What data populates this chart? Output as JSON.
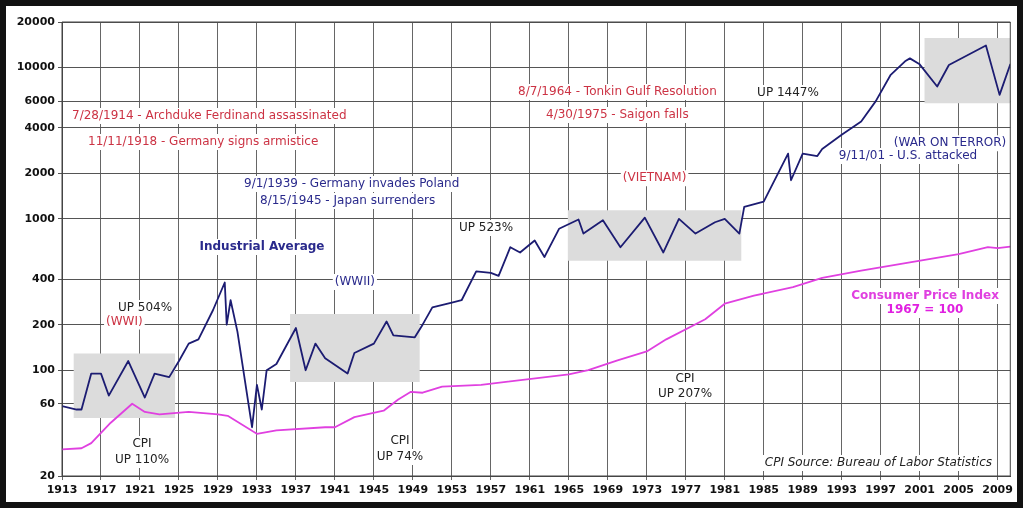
{
  "chart_data": {
    "type": "line",
    "log": "y",
    "grid": true,
    "legend": false,
    "marker": "none",
    "line_style": "solid",
    "xlim": [
      1913,
      2010.3
    ],
    "xticks": [
      1913,
      1917,
      1921,
      1925,
      1929,
      1933,
      1937,
      1941,
      1945,
      1949,
      1953,
      1957,
      1961,
      1965,
      1969,
      1973,
      1977,
      1981,
      1985,
      1989,
      1993,
      1997,
      2001,
      2005,
      2009
    ],
    "ylim": [
      20,
      20000
    ],
    "yticks": [
      20,
      60,
      100,
      200,
      400,
      1000,
      2000,
      4000,
      6000,
      10000,
      20000
    ],
    "series": [
      {
        "name": "Industrial Average",
        "color": "#1c1c72",
        "x": [
          1913,
          1914.5,
          1915,
          1916,
          1917,
          1917.8,
          1919.8,
          1921.5,
          1922.5,
          1924,
          1925,
          1926,
          1927,
          1928.5,
          1929.7,
          1929.9,
          1930.3,
          1931,
          1932.5,
          1933,
          1933.5,
          1934,
          1935,
          1937,
          1938,
          1939,
          1940,
          1942.3,
          1943,
          1945,
          1946.3,
          1947,
          1949.2,
          1950,
          1951,
          1953,
          1954,
          1955.5,
          1957,
          1957.8,
          1959,
          1960,
          1961.5,
          1962.5,
          1964,
          1966,
          1966.5,
          1968.5,
          1970.3,
          1972.8,
          1974.7,
          1976.3,
          1978,
          1980,
          1981,
          1982.5,
          1983,
          1985,
          1987.5,
          1987.8,
          1989,
          1990.5,
          1991,
          1993,
          1995,
          1996.5,
          1998,
          1999.5,
          2000,
          2001,
          2002.8,
          2004,
          2007.8,
          2009.2,
          2010.3
        ],
        "values": [
          58,
          55,
          55,
          95,
          95,
          68,
          115,
          66,
          95,
          90,
          115,
          150,
          160,
          250,
          380,
          200,
          290,
          180,
          42,
          80,
          55,
          100,
          110,
          190,
          100,
          150,
          120,
          95,
          130,
          150,
          210,
          170,
          165,
          200,
          260,
          280,
          290,
          450,
          440,
          420,
          650,
          600,
          720,
          560,
          860,
          990,
          800,
          980,
          650,
          1020,
          600,
          1000,
          800,
          950,
          1000,
          800,
          1200,
          1300,
          2700,
          1800,
          2700,
          2600,
          2900,
          3600,
          4400,
          6000,
          8900,
          11000,
          11500,
          10500,
          7500,
          10400,
          14000,
          6600,
          10500
        ]
      },
      {
        "name": "Consumer Price Index",
        "color": "#e040e0",
        "x": [
          1913,
          1915,
          1916,
          1918,
          1920.2,
          1921.5,
          1923,
          1926,
          1929,
          1930,
          1933,
          1935,
          1940,
          1941,
          1943,
          1946,
          1947.5,
          1948.8,
          1950,
          1952,
          1956,
          1965,
          1967,
          1970,
          1973,
          1975,
          1979,
          1981,
          1984,
          1988,
          1991,
          1995,
          2000,
          2005,
          2008,
          2009,
          2010.3
        ],
        "values": [
          30,
          30.5,
          33,
          45,
          60,
          53,
          51,
          53,
          51,
          50,
          38,
          40,
          42,
          42,
          49,
          54,
          64,
          72,
          71,
          78,
          80,
          94,
          100,
          116,
          133,
          160,
          217,
          275,
          311,
          354,
          408,
          455,
          516,
          585,
          650,
          640,
          655
        ]
      }
    ],
    "bands": [
      {
        "axis": "x",
        "from": 1914.2,
        "to": 1924.6,
        "label": "(WWI)",
        "color": "#dcdcdc"
      },
      {
        "axis": "x",
        "from": 1936.4,
        "to": 1949.7,
        "label": "(WWII)",
        "color": "#dcdcdc"
      },
      {
        "axis": "x",
        "from": 1964.9,
        "to": 1982.7,
        "label": "(VIETNAM)",
        "color": "#dcdcdc"
      },
      {
        "axis": "x",
        "from": 2001.5,
        "to": 2010.3,
        "label": "(WAR ON TERROR)",
        "color": "#dcdcdc"
      }
    ],
    "annotations": [
      "7/28/1914 - Archduke Ferdinand assassinated",
      "11/11/1918 - Germany signs armistice",
      "9/1/1939 - Germany invades Poland",
      "8/15/1945 - Japan surrenders",
      "8/7/1964 - Tonkin Gulf Resolution",
      "4/30/1975 - Saigon falls",
      "9/11/01 - U.S. attacked",
      "UP 504%",
      "UP 523%",
      "UP 1447%",
      "CPI",
      "UP 110%",
      "CPI",
      "UP 74%",
      "CPI",
      "UP 207%",
      "1967 = 100",
      "CPI Source: Bureau of Labor Statistics"
    ]
  }
}
